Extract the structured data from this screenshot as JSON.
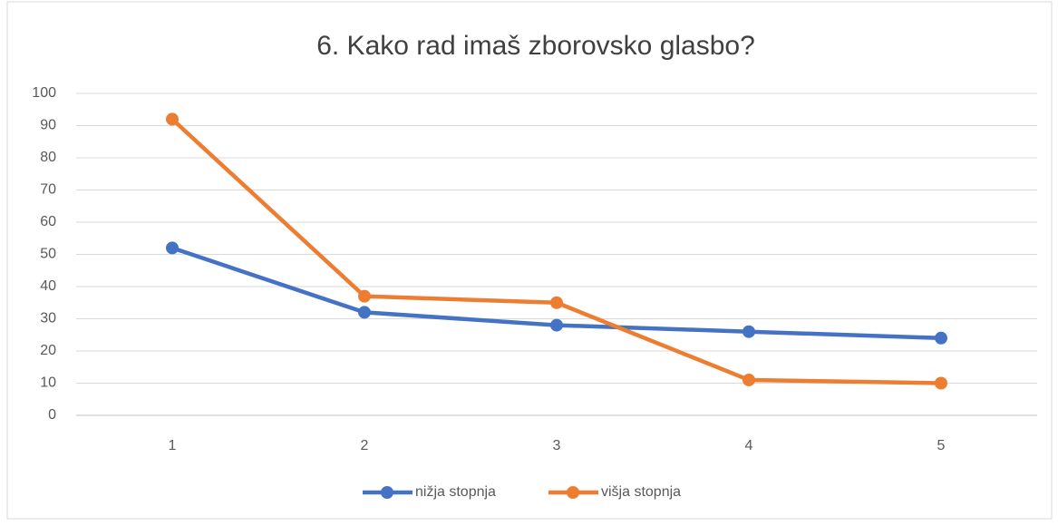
{
  "chart_data": {
    "type": "line",
    "title": "6. Kako rad imaš zborovsko glasbo?",
    "categories": [
      "1",
      "2",
      "3",
      "4",
      "5"
    ],
    "series": [
      {
        "name": "nižja stopnja",
        "color": "#4472c4",
        "values": [
          52,
          32,
          28,
          26,
          24
        ]
      },
      {
        "name": "višja stopnja",
        "color": "#ed7d31",
        "values": [
          92,
          37,
          35,
          11,
          10
        ]
      }
    ],
    "ylim": [
      0,
      100
    ],
    "yticks": [
      0,
      10,
      20,
      30,
      40,
      50,
      60,
      70,
      80,
      90,
      100
    ],
    "grid": true,
    "legend": "bottom"
  }
}
